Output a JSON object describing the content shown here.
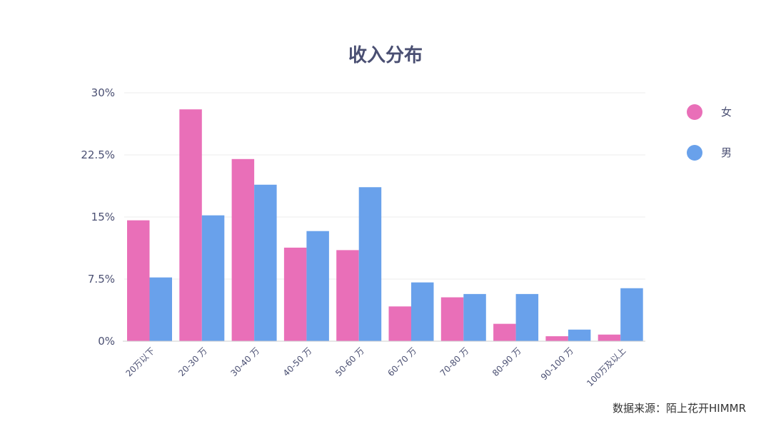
{
  "chart_data": {
    "type": "bar",
    "title": "收入分布",
    "categories": [
      "20万以下",
      "20-30 万",
      "30-40 万",
      "40-50 万",
      "50-60 万",
      "60-70 万",
      "70-80 万",
      "80-90 万",
      "90-100 万",
      "100万及以上"
    ],
    "series": [
      {
        "name": "女",
        "color": "#e96fb8",
        "values": [
          14.6,
          28.0,
          22.0,
          11.3,
          11.0,
          4.2,
          5.3,
          2.1,
          0.6,
          0.8
        ]
      },
      {
        "name": "男",
        "color": "#69a1eb",
        "values": [
          7.7,
          15.2,
          18.9,
          13.3,
          18.6,
          7.1,
          5.7,
          5.7,
          1.4,
          6.4
        ]
      }
    ],
    "yticks": [
      "0%",
      "7.5%",
      "15%",
      "22.5%",
      "30%"
    ],
    "ylim": [
      0,
      30
    ],
    "grid": true,
    "legend": "right"
  },
  "source_note": "数据来源：陌上花开HIMMR"
}
